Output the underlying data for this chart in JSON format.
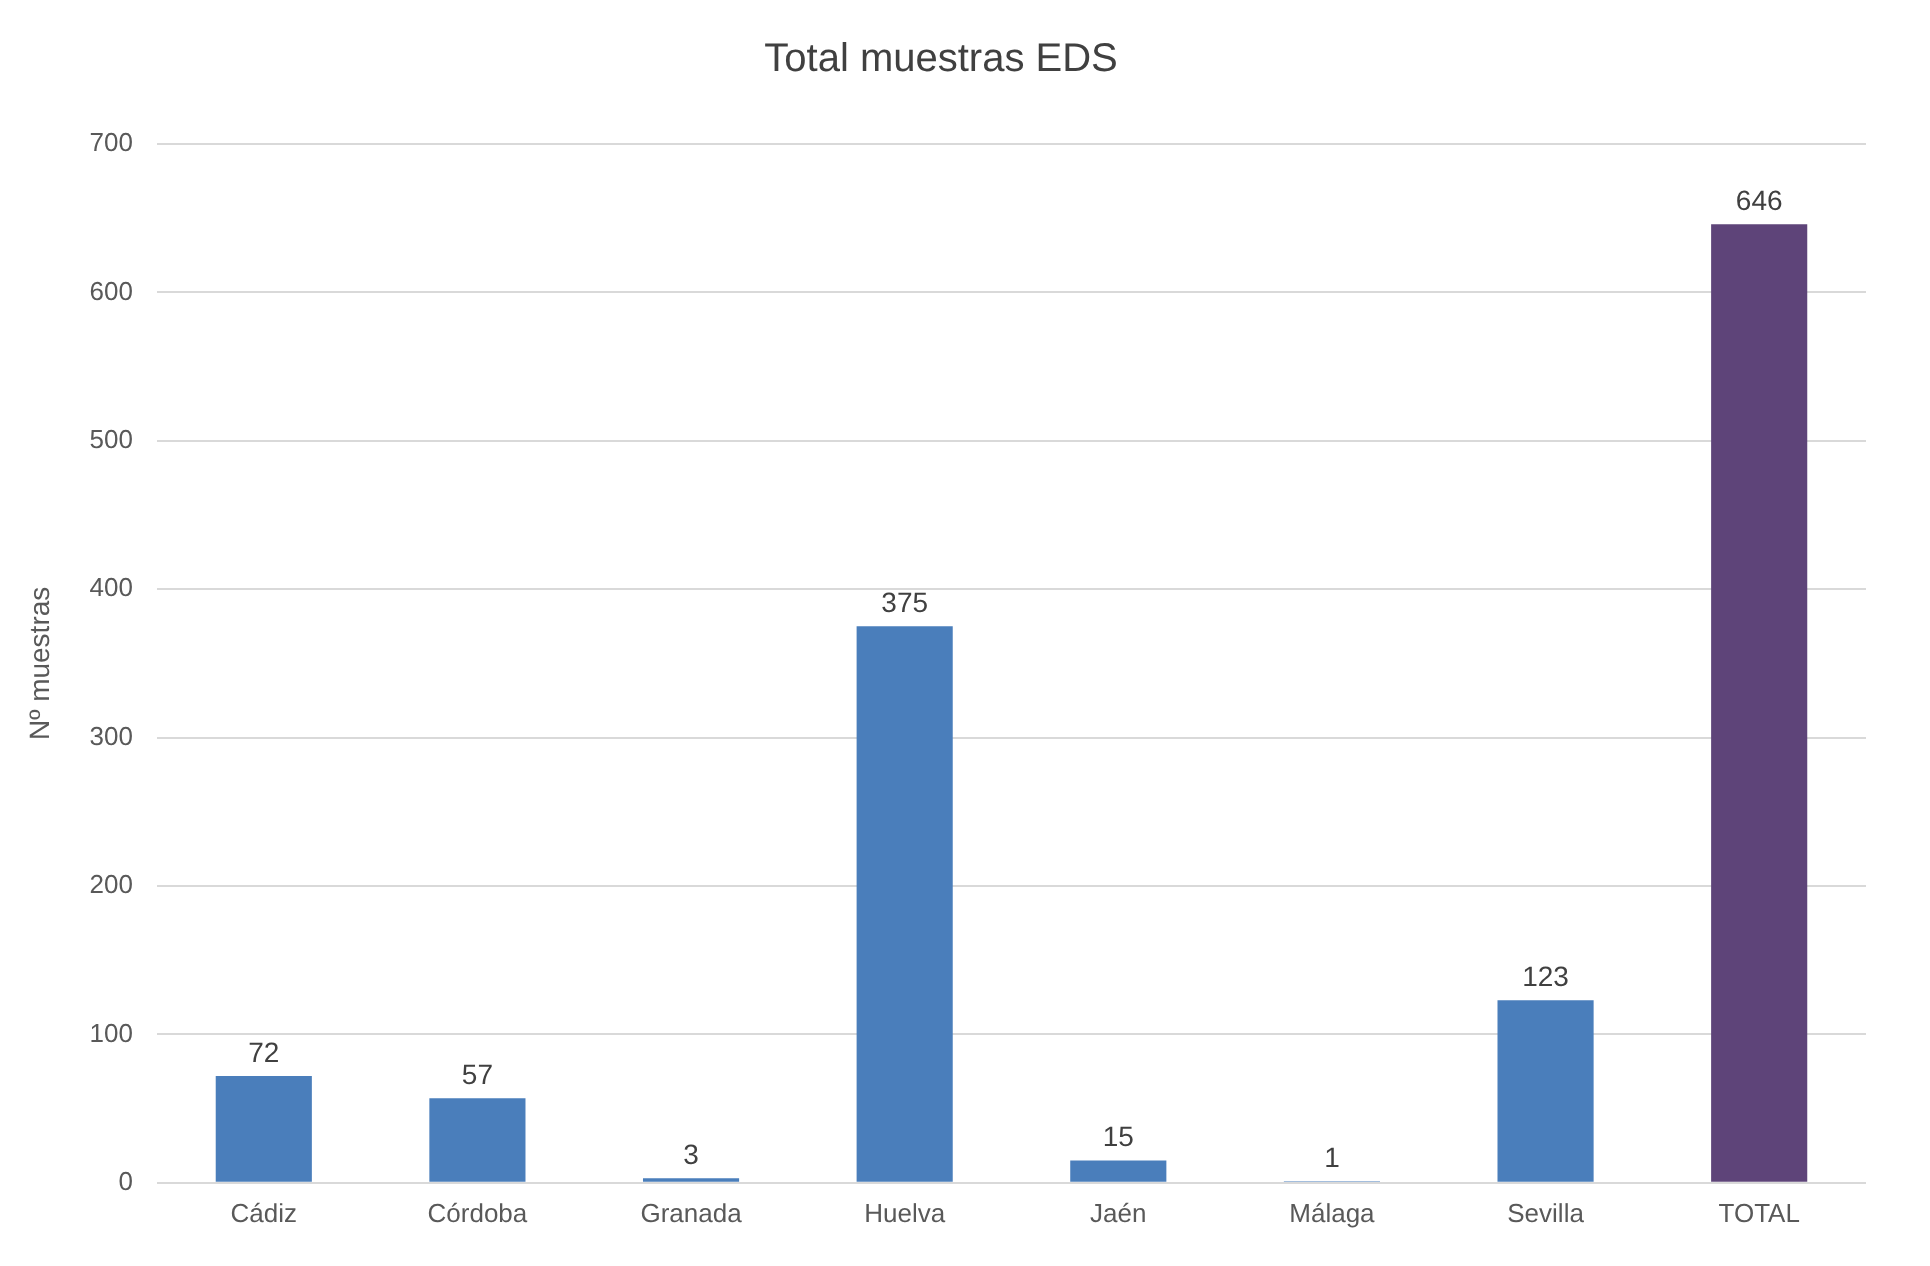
{
  "chart_data": {
    "type": "bar",
    "title": "Total muestras EDS",
    "ylabel": "Nº muestras",
    "categories": [
      "Cádiz",
      "Córdoba",
      "Granada",
      "Huelva",
      "Jaén",
      "Málaga",
      "Sevilla",
      "TOTAL"
    ],
    "values": [
      72,
      57,
      3,
      375,
      15,
      1,
      123,
      646
    ],
    "colors": [
      "#4a7ebb",
      "#4a7ebb",
      "#4a7ebb",
      "#4a7ebb",
      "#4a7ebb",
      "#4a7ebb",
      "#4a7ebb",
      "#5e4479"
    ],
    "ylim": [
      0,
      700
    ],
    "yticks": [
      0,
      100,
      200,
      300,
      400,
      500,
      600,
      700
    ],
    "grid": "y",
    "legend": false,
    "data_labels": true
  }
}
